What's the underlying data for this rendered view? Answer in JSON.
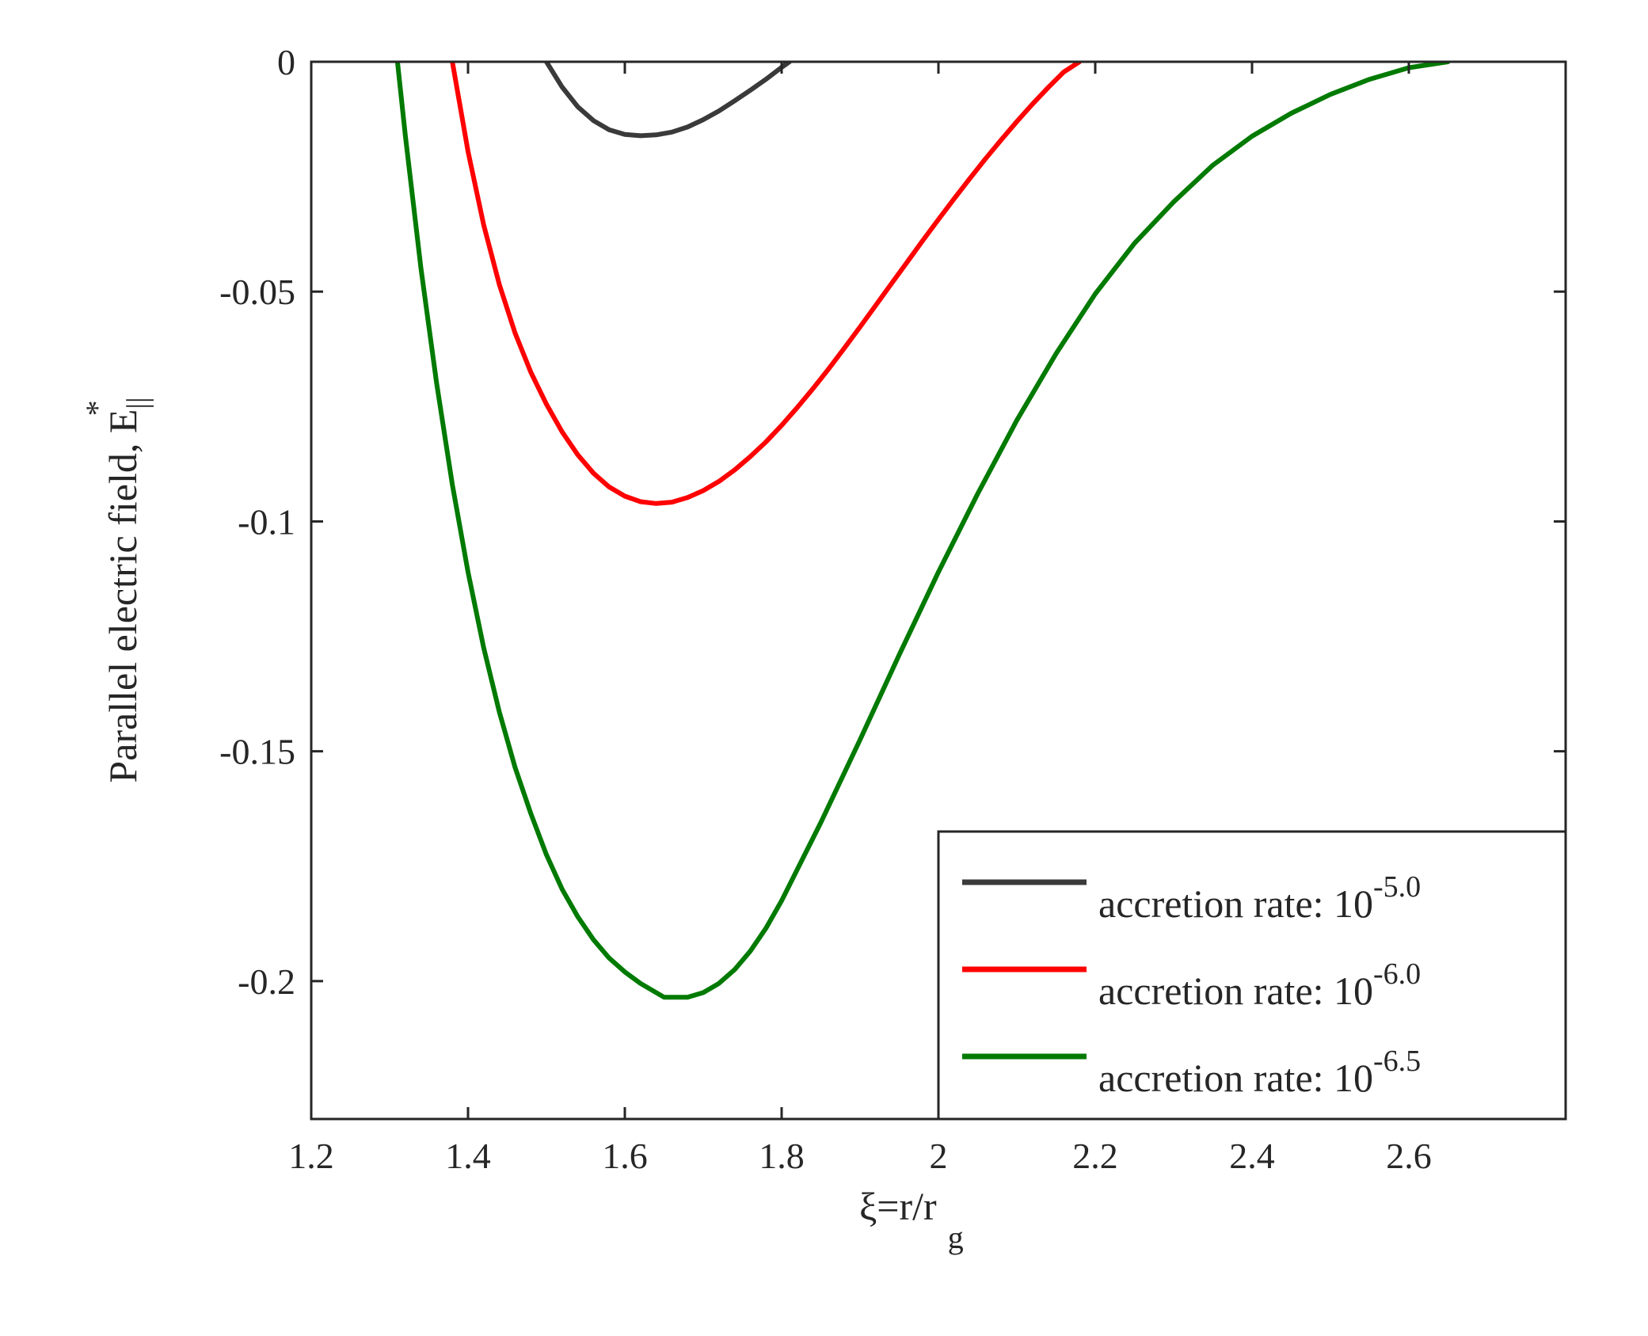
{
  "chart_data": {
    "type": "line",
    "title": "",
    "xlabel": {
      "main": "ξ=r/r",
      "subscript": "g"
    },
    "ylabel": {
      "main": "Parallel electric field, E",
      "subscript": "||",
      "superscript": "*"
    },
    "xlim": [
      1.2,
      2.8
    ],
    "ylim": [
      -0.23,
      0
    ],
    "xticks": [
      1.2,
      1.4,
      1.6,
      1.8,
      2.0,
      2.2,
      2.4,
      2.6
    ],
    "xtick_labels": [
      "1.2",
      "1.4",
      "1.6",
      "1.8",
      "2",
      "2.2",
      "2.4",
      "2.6"
    ],
    "yticks": [
      0,
      -0.05,
      -0.1,
      -0.15,
      -0.2
    ],
    "ytick_labels": [
      "0",
      "-0.05",
      "-0.1",
      "-0.15",
      "-0.2"
    ],
    "grid": false,
    "legend_position": "bottom-right",
    "series": [
      {
        "name": "accretion rate: 10^-5.0",
        "label": "accretion rate: 10",
        "exponent": "-5.0",
        "color": "#3a3a3a",
        "x": [
          1.5,
          1.52,
          1.54,
          1.56,
          1.58,
          1.6,
          1.62,
          1.64,
          1.66,
          1.68,
          1.7,
          1.72,
          1.74,
          1.76,
          1.78,
          1.8,
          1.81
        ],
        "y": [
          0,
          -0.0055,
          -0.0098,
          -0.0128,
          -0.0148,
          -0.0158,
          -0.0161,
          -0.0159,
          -0.0153,
          -0.0142,
          -0.0126,
          -0.0107,
          -0.0085,
          -0.0062,
          -0.0038,
          -0.0012,
          0
        ]
      },
      {
        "name": "accretion rate: 10^-6.0",
        "label": "accretion rate: 10",
        "exponent": "-6.0",
        "color": "#ff0000",
        "x": [
          1.38,
          1.4,
          1.42,
          1.44,
          1.46,
          1.48,
          1.5,
          1.52,
          1.54,
          1.56,
          1.58,
          1.6,
          1.62,
          1.64,
          1.66,
          1.68,
          1.7,
          1.72,
          1.74,
          1.76,
          1.78,
          1.8,
          1.82,
          1.84,
          1.86,
          1.88,
          1.9,
          1.92,
          1.94,
          1.96,
          1.98,
          2.0,
          2.02,
          2.04,
          2.06,
          2.08,
          2.1,
          2.12,
          2.14,
          2.16,
          2.18
        ],
        "y": [
          0,
          -0.0195,
          -0.0355,
          -0.0485,
          -0.059,
          -0.0675,
          -0.0745,
          -0.0805,
          -0.0855,
          -0.0895,
          -0.0925,
          -0.0945,
          -0.0957,
          -0.0961,
          -0.0958,
          -0.0948,
          -0.0933,
          -0.0913,
          -0.0888,
          -0.0859,
          -0.0827,
          -0.0791,
          -0.0752,
          -0.0711,
          -0.0668,
          -0.0623,
          -0.0577,
          -0.053,
          -0.0483,
          -0.0436,
          -0.0389,
          -0.0343,
          -0.0298,
          -0.0254,
          -0.0211,
          -0.017,
          -0.013,
          -0.0092,
          -0.0056,
          -0.0022,
          0
        ]
      },
      {
        "name": "accretion rate: 10^-6.5",
        "label": "accretion rate: 10",
        "exponent": "-6.5",
        "color": "#007a00",
        "x": [
          1.31,
          1.32,
          1.34,
          1.36,
          1.38,
          1.4,
          1.42,
          1.44,
          1.46,
          1.48,
          1.5,
          1.52,
          1.54,
          1.56,
          1.58,
          1.6,
          1.62,
          1.65,
          1.68,
          1.7,
          1.72,
          1.74,
          1.76,
          1.78,
          1.8,
          1.85,
          1.9,
          1.95,
          2.0,
          2.05,
          2.1,
          2.15,
          2.2,
          2.25,
          2.3,
          2.35,
          2.4,
          2.45,
          2.5,
          2.55,
          2.6,
          2.65
        ],
        "y": [
          0,
          -0.016,
          -0.045,
          -0.07,
          -0.092,
          -0.111,
          -0.1275,
          -0.1415,
          -0.1535,
          -0.1635,
          -0.1725,
          -0.18,
          -0.186,
          -0.191,
          -0.195,
          -0.198,
          -0.2005,
          -0.2035,
          -0.2035,
          -0.2025,
          -0.2005,
          -0.1975,
          -0.1935,
          -0.1885,
          -0.1825,
          -0.1655,
          -0.1475,
          -0.129,
          -0.111,
          -0.094,
          -0.078,
          -0.0635,
          -0.0505,
          -0.0395,
          -0.0305,
          -0.0225,
          -0.0162,
          -0.0112,
          -0.0071,
          -0.0038,
          -0.0013,
          0
        ]
      }
    ]
  }
}
